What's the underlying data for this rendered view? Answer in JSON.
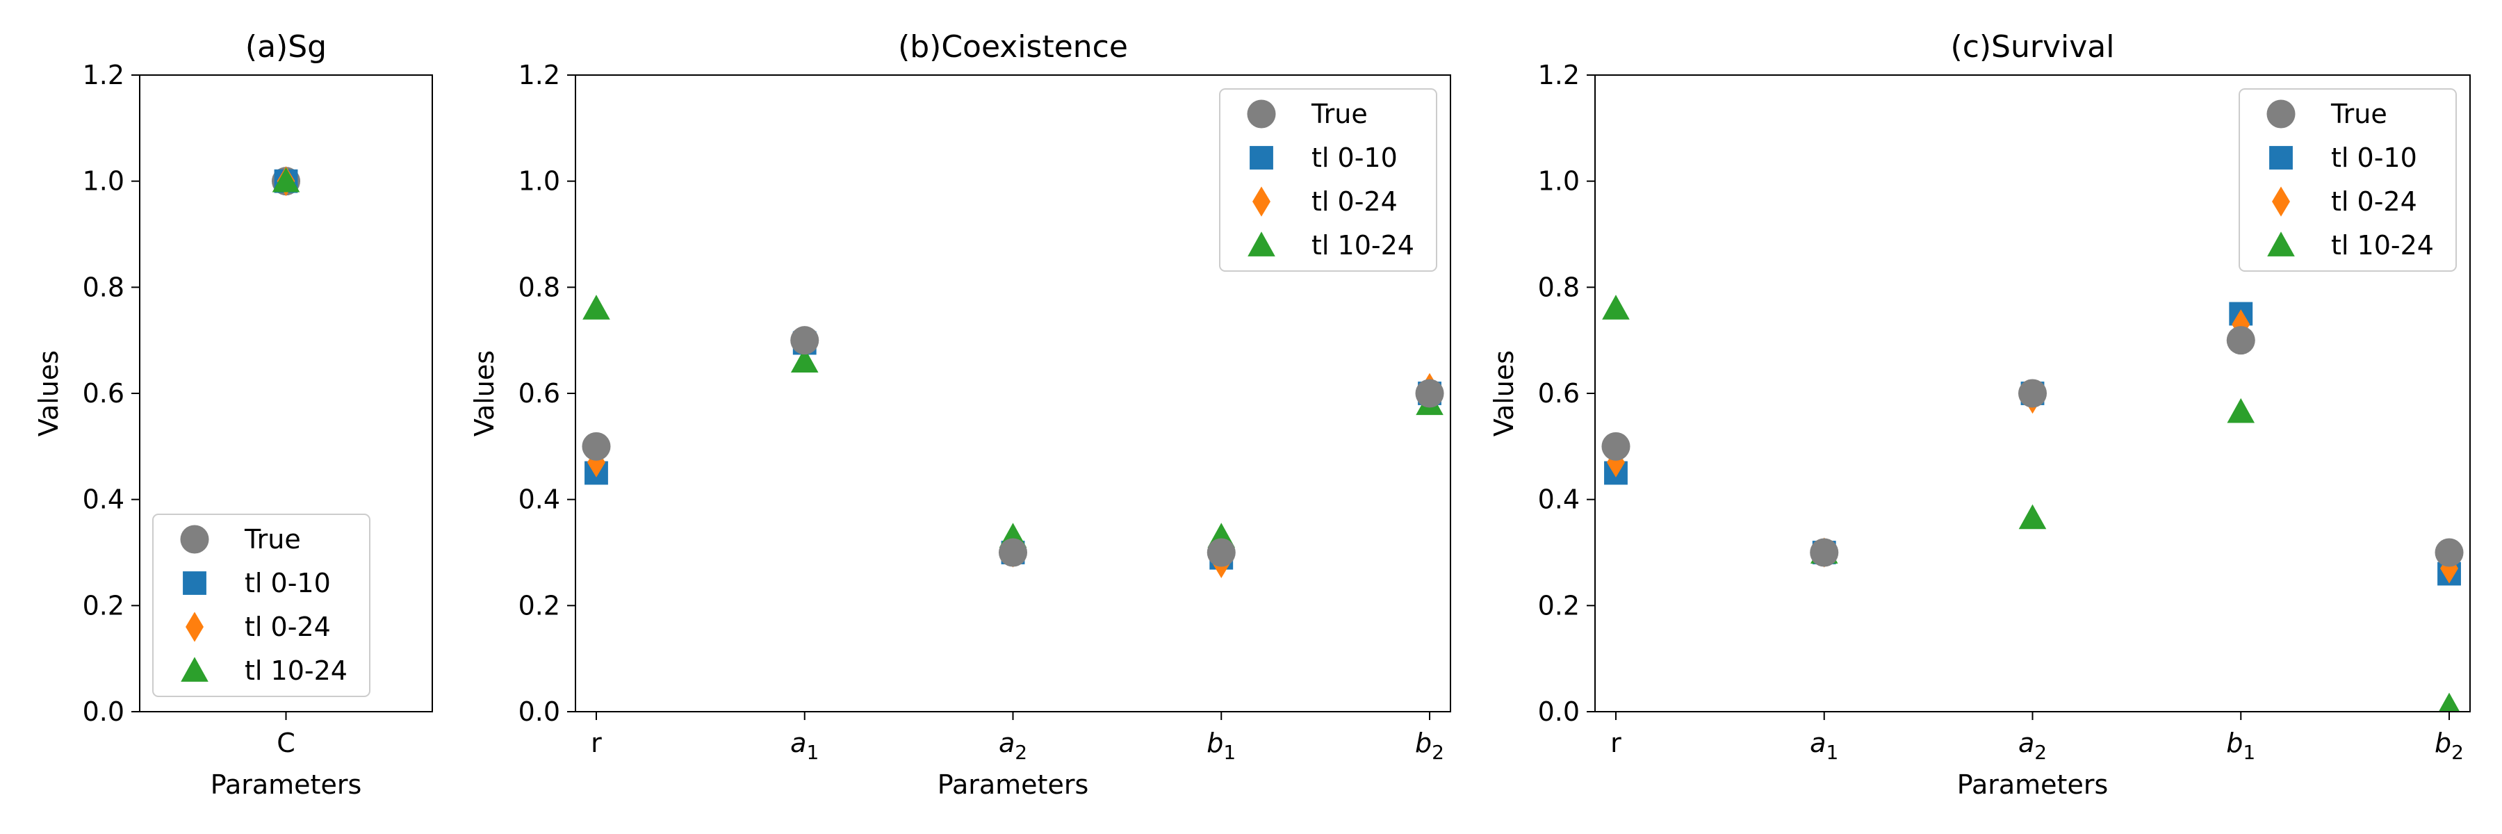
{
  "chart_data": [
    {
      "type": "scatter",
      "title": "(a)Sg",
      "xlabel": "Parameters",
      "ylabel": "Values",
      "categories": [
        {
          "base": "C",
          "sub": ""
        }
      ],
      "ylim": [
        0,
        1.2
      ],
      "yticks": [
        "0.0",
        "0.2",
        "0.4",
        "0.6",
        "0.8",
        "1.0",
        "1.2"
      ],
      "legend_loc": "lower-left",
      "series": [
        {
          "name": "True",
          "marker": "circle",
          "color": "#808080",
          "values": [
            1.0
          ]
        },
        {
          "name": "tl 0-10",
          "marker": "square",
          "color": "#1f77b4",
          "values": [
            1.0
          ]
        },
        {
          "name": "tl 0-24",
          "marker": "diamond",
          "color": "#ff7f0e",
          "values": [
            1.0
          ]
        },
        {
          "name": "tl 10-24",
          "marker": "triangle",
          "color": "#2ca02c",
          "values": [
            1.0
          ]
        }
      ]
    },
    {
      "type": "scatter",
      "title": "(b)Coexistence",
      "xlabel": "Parameters",
      "ylabel": "Values",
      "categories": [
        {
          "base": "r",
          "sub": ""
        },
        {
          "base": "a",
          "sub": "1"
        },
        {
          "base": "a",
          "sub": "2"
        },
        {
          "base": "b",
          "sub": "1"
        },
        {
          "base": "b",
          "sub": "2"
        }
      ],
      "ylim": [
        0,
        1.2
      ],
      "yticks": [
        "0.0",
        "0.2",
        "0.4",
        "0.6",
        "0.8",
        "1.0",
        "1.2"
      ],
      "legend_loc": "upper-right",
      "series": [
        {
          "name": "tl 0-10",
          "marker": "square",
          "color": "#1f77b4",
          "values": [
            0.45,
            0.695,
            0.3,
            0.29,
            0.6
          ]
        },
        {
          "name": "tl 0-24",
          "marker": "diamond",
          "color": "#ff7f0e",
          "values": [
            0.47,
            0.695,
            0.3,
            0.28,
            0.61
          ]
        },
        {
          "name": "tl 10-24",
          "marker": "triangle",
          "color": "#2ca02c",
          "values": [
            0.76,
            0.66,
            0.33,
            0.33,
            0.58
          ]
        },
        {
          "name": "True",
          "marker": "circle",
          "color": "#808080",
          "values": [
            0.5,
            0.7,
            0.3,
            0.3,
            0.6
          ]
        }
      ]
    },
    {
      "type": "scatter",
      "title": "(c)Survival",
      "xlabel": "Parameters",
      "ylabel": "Values",
      "categories": [
        {
          "base": "r",
          "sub": ""
        },
        {
          "base": "a",
          "sub": "1"
        },
        {
          "base": "a",
          "sub": "2"
        },
        {
          "base": "b",
          "sub": "1"
        },
        {
          "base": "b",
          "sub": "2"
        }
      ],
      "ylim": [
        0,
        1.2
      ],
      "yticks": [
        "0.0",
        "0.2",
        "0.4",
        "0.6",
        "0.8",
        "1.0",
        "1.2"
      ],
      "legend_loc": "upper-right",
      "series": [
        {
          "name": "tl 0-10",
          "marker": "square",
          "color": "#1f77b4",
          "values": [
            0.45,
            0.3,
            0.6,
            0.75,
            0.26
          ]
        },
        {
          "name": "tl 0-24",
          "marker": "diamond",
          "color": "#ff7f0e",
          "values": [
            0.47,
            0.3,
            0.59,
            0.73,
            0.27
          ]
        },
        {
          "name": "tl 10-24",
          "marker": "triangle",
          "color": "#2ca02c",
          "values": [
            0.76,
            0.3,
            0.365,
            0.565,
            0.01
          ]
        },
        {
          "name": "True",
          "marker": "circle",
          "color": "#808080",
          "values": [
            0.5,
            0.3,
            0.6,
            0.7,
            0.3
          ]
        }
      ]
    }
  ]
}
